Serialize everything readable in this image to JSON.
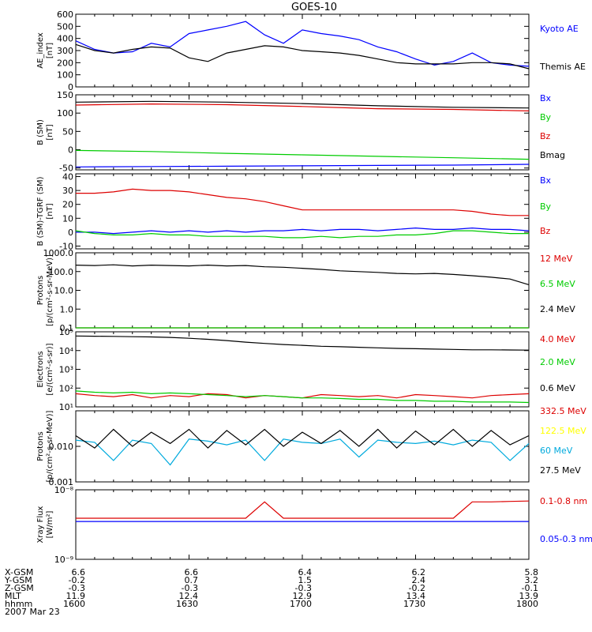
{
  "title": "GOES-10",
  "colors": {
    "axis": "#000000",
    "black": "#000000",
    "blue": "#0000ff",
    "red": "#dd0000",
    "green": "#00cc00",
    "yellow": "#ffff00",
    "cyan": "#00aadd"
  },
  "chart_data": [
    {
      "type": "line",
      "id": "ae",
      "ylabel": [
        "AE_index",
        "[nT]"
      ],
      "ylim": [
        0,
        600
      ],
      "yticks": [
        {
          "v": 0,
          "label": "0"
        },
        {
          "v": 100,
          "label": "100"
        },
        {
          "v": 200,
          "label": "200"
        },
        {
          "v": 300,
          "label": "300"
        },
        {
          "v": 400,
          "label": "400"
        },
        {
          "v": 500,
          "label": "500"
        },
        {
          "v": 600,
          "label": "600"
        }
      ],
      "x": [
        0,
        5,
        10,
        15,
        20,
        25,
        30,
        35,
        40,
        45,
        50,
        55,
        60,
        65,
        70,
        75,
        80,
        85,
        90,
        95,
        100,
        105,
        110,
        115,
        120
      ],
      "series": [
        {
          "name": "Kyoto AE",
          "color": "blue",
          "values": [
            380,
            310,
            280,
            290,
            360,
            330,
            440,
            470,
            500,
            540,
            430,
            360,
            470,
            440,
            420,
            390,
            330,
            290,
            230,
            180,
            210,
            280,
            200,
            180,
            170
          ]
        },
        {
          "name": "Themis AE",
          "color": "black",
          "values": [
            350,
            300,
            280,
            310,
            330,
            320,
            240,
            210,
            280,
            310,
            340,
            330,
            300,
            290,
            280,
            260,
            230,
            200,
            190,
            190,
            190,
            200,
            200,
            190,
            150
          ]
        }
      ]
    },
    {
      "type": "line",
      "id": "bsm",
      "ylabel": [
        "B (SM)",
        "[nT]"
      ],
      "ylim": [
        -55,
        150
      ],
      "yticks": [
        {
          "v": -50,
          "label": "-50"
        },
        {
          "v": 0,
          "label": "0"
        },
        {
          "v": 50,
          "label": "50"
        },
        {
          "v": 100,
          "label": "100"
        },
        {
          "v": 150,
          "label": "150"
        }
      ],
      "x": [
        0,
        20,
        40,
        60,
        80,
        100,
        120
      ],
      "series": [
        {
          "name": "Bx",
          "color": "blue",
          "values": [
            -47,
            -46,
            -45,
            -44,
            -43,
            -42,
            -40
          ]
        },
        {
          "name": "By",
          "color": "green",
          "values": [
            -2,
            -5,
            -10,
            -14,
            -18,
            -22,
            -26
          ]
        },
        {
          "name": "Bz",
          "color": "red",
          "values": [
            122,
            125,
            123,
            118,
            112,
            110,
            106
          ]
        },
        {
          "name": "Bmag",
          "color": "black",
          "values": [
            130,
            132,
            130,
            126,
            120,
            116,
            114
          ]
        }
      ]
    },
    {
      "type": "line",
      "id": "btgrf",
      "ylabel": [
        "B (SM)-TGRF (SM)",
        "[nT]"
      ],
      "ylim": [
        -12,
        42
      ],
      "yticks": [
        {
          "v": -10,
          "label": "-10"
        },
        {
          "v": 0,
          "label": "0"
        },
        {
          "v": 10,
          "label": "10"
        },
        {
          "v": 20,
          "label": "20"
        },
        {
          "v": 30,
          "label": "30"
        },
        {
          "v": 40,
          "label": "40"
        }
      ],
      "x": [
        0,
        5,
        10,
        15,
        20,
        25,
        30,
        35,
        40,
        45,
        50,
        55,
        60,
        65,
        70,
        75,
        80,
        85,
        90,
        95,
        100,
        105,
        110,
        115,
        120
      ],
      "series": [
        {
          "name": "Bx",
          "color": "blue",
          "values": [
            0,
            0,
            -1,
            0,
            1,
            0,
            1,
            0,
            1,
            0,
            1,
            1,
            2,
            1,
            2,
            2,
            1,
            2,
            3,
            2,
            2,
            3,
            2,
            2,
            1
          ]
        },
        {
          "name": "By",
          "color": "green",
          "values": [
            1,
            -1,
            -2,
            -2,
            -1,
            -2,
            -2,
            -3,
            -3,
            -3,
            -3,
            -4,
            -4,
            -3,
            -4,
            -3,
            -3,
            -2,
            -2,
            -1,
            1,
            1,
            0,
            -1,
            -1
          ]
        },
        {
          "name": "Bz",
          "color": "red",
          "values": [
            28,
            28,
            29,
            31,
            30,
            30,
            29,
            27,
            25,
            24,
            22,
            19,
            16,
            16,
            16,
            16,
            16,
            16,
            16,
            16,
            16,
            15,
            13,
            12,
            12
          ]
        }
      ]
    },
    {
      "type": "line",
      "id": "protons_low",
      "ylabel": [
        "Protons",
        "[p/(cm²-s-sr-MeV)]"
      ],
      "log": true,
      "ylim": [
        0.1,
        1000
      ],
      "yticks": [
        {
          "v": 0.1,
          "label": "0.1"
        },
        {
          "v": 1,
          "label": "1.0"
        },
        {
          "v": 10,
          "label": "10.0"
        },
        {
          "v": 100,
          "label": "100.0"
        },
        {
          "v": 1000,
          "label": "1000.0"
        }
      ],
      "x": [
        0,
        5,
        10,
        15,
        20,
        25,
        30,
        35,
        40,
        45,
        50,
        55,
        60,
        65,
        70,
        75,
        80,
        85,
        90,
        95,
        100,
        105,
        110,
        115,
        120
      ],
      "series": [
        {
          "name": "12 MeV",
          "color": "red",
          "values": [
            0.1,
            0.1,
            0.1,
            0.1,
            0.1,
            0.1,
            0.1,
            0.1,
            0.1,
            0.1,
            0.1,
            0.1,
            0.1,
            0.1,
            0.1,
            0.1,
            0.1,
            0.1,
            0.1,
            0.1,
            0.1,
            0.1,
            0.1,
            0.1,
            0.1
          ]
        },
        {
          "name": "6.5 MeV",
          "color": "green",
          "values": [
            0.1,
            0.1,
            0.1,
            0.1,
            0.1,
            0.1,
            0.1,
            0.1,
            0.1,
            0.1,
            0.1,
            0.1,
            0.1,
            0.1,
            0.1,
            0.1,
            0.1,
            0.1,
            0.1,
            0.1,
            0.1,
            0.1,
            0.1,
            0.1,
            0.1
          ]
        },
        {
          "name": "2.4 MeV",
          "color": "black",
          "values": [
            220,
            210,
            230,
            200,
            220,
            210,
            200,
            220,
            200,
            210,
            180,
            170,
            150,
            130,
            110,
            100,
            90,
            80,
            75,
            80,
            70,
            60,
            50,
            40,
            20
          ]
        }
      ]
    },
    {
      "type": "line",
      "id": "electrons",
      "ylabel": [
        "Electrons",
        "[e/(cm²-s-sr)]"
      ],
      "log": true,
      "ylim": [
        10,
        100000
      ],
      "yticks": [
        {
          "v": 10,
          "label": "10¹"
        },
        {
          "v": 100,
          "label": "10²"
        },
        {
          "v": 1000,
          "label": "10³"
        },
        {
          "v": 10000,
          "label": "10⁴"
        },
        {
          "v": 100000,
          "label": "10⁵"
        }
      ],
      "x": [
        0,
        5,
        10,
        15,
        20,
        25,
        30,
        35,
        40,
        45,
        50,
        55,
        60,
        65,
        70,
        75,
        80,
        85,
        90,
        95,
        100,
        105,
        110,
        115,
        120
      ],
      "series": [
        {
          "name": "4.0 MeV",
          "color": "red",
          "values": [
            50,
            40,
            35,
            45,
            30,
            40,
            35,
            50,
            45,
            30,
            40,
            35,
            30,
            45,
            40,
            35,
            40,
            30,
            45,
            40,
            35,
            30,
            40,
            45,
            50
          ]
        },
        {
          "name": "2.0 MeV",
          "color": "green",
          "values": [
            70,
            60,
            55,
            60,
            50,
            55,
            50,
            45,
            40,
            35,
            40,
            35,
            30,
            30,
            28,
            25,
            25,
            22,
            22,
            20,
            20,
            18,
            18,
            18,
            17
          ]
        },
        {
          "name": "0.6 MeV",
          "color": "black",
          "values": [
            60000,
            58000,
            57000,
            55000,
            53000,
            50000,
            45000,
            40000,
            34000,
            28000,
            24000,
            21000,
            19000,
            17000,
            16000,
            15000,
            14000,
            13000,
            12500,
            12000,
            11500,
            11000,
            11000,
            10800,
            10500
          ]
        }
      ]
    },
    {
      "type": "line",
      "id": "protons_high",
      "ylabel": [
        "Protons",
        "[p/(cm²-s-sr-MeV)]"
      ],
      "log": true,
      "ylim": [
        0.001,
        0.1
      ],
      "yticks": [
        {
          "v": 0.001,
          "label": "0.001"
        },
        {
          "v": 0.01,
          "label": "0.010"
        }
      ],
      "x": [
        0,
        5,
        10,
        15,
        20,
        25,
        30,
        35,
        40,
        45,
        50,
        55,
        60,
        65,
        70,
        75,
        80,
        85,
        90,
        95,
        100,
        105,
        110,
        115,
        120
      ],
      "series": [
        {
          "name": "332.5 MeV",
          "color": "red",
          "values": [
            null,
            null,
            null,
            null,
            null,
            null,
            null,
            null,
            null,
            null,
            null,
            null,
            null,
            null,
            null,
            null,
            null,
            null,
            null,
            null,
            null,
            null,
            null,
            null,
            null
          ]
        },
        {
          "name": "122.5 MeV",
          "color": "yellow",
          "values": [
            null,
            null,
            null,
            null,
            null,
            null,
            null,
            null,
            null,
            null,
            null,
            null,
            null,
            null,
            null,
            null,
            null,
            null,
            null,
            null,
            null,
            null,
            null,
            null,
            null
          ]
        },
        {
          "name": "60 MeV",
          "color": "cyan",
          "values": [
            0.015,
            0.013,
            0.004,
            0.015,
            0.012,
            0.003,
            0.016,
            0.014,
            0.011,
            0.015,
            0.004,
            0.016,
            0.013,
            0.012,
            0.016,
            0.005,
            0.015,
            0.013,
            0.012,
            0.014,
            0.011,
            0.015,
            0.013,
            0.004,
            0.012
          ]
        },
        {
          "name": "27.5 MeV",
          "color": "black",
          "values": [
            0.02,
            0.009,
            0.03,
            0.01,
            0.025,
            0.012,
            0.03,
            0.009,
            0.028,
            0.011,
            0.03,
            0.01,
            0.025,
            0.012,
            0.028,
            0.01,
            0.03,
            0.009,
            0.027,
            0.011,
            0.03,
            0.01,
            0.028,
            0.011,
            0.02
          ]
        }
      ]
    },
    {
      "type": "line",
      "id": "xray",
      "ylabel": [
        "Xray  Flux",
        "[W/m²]"
      ],
      "log": true,
      "ylim": [
        1e-09,
        1e-08
      ],
      "yticks": [
        {
          "v": 1e-09,
          "label": "10⁻⁹"
        },
        {
          "v": 1e-08,
          "label": "10⁻⁸"
        }
      ],
      "x": [
        0,
        5,
        10,
        15,
        20,
        25,
        30,
        35,
        40,
        45,
        50,
        55,
        60,
        65,
        70,
        75,
        80,
        85,
        90,
        95,
        100,
        105,
        110,
        115,
        120
      ],
      "series": [
        {
          "name": "0.1-0.8 nm",
          "color": "red",
          "values": [
            3.9e-09,
            3.9e-09,
            3.9e-09,
            3.9e-09,
            3.9e-09,
            3.9e-09,
            3.9e-09,
            3.9e-09,
            3.9e-09,
            3.9e-09,
            6.7e-09,
            3.9e-09,
            3.9e-09,
            3.9e-09,
            3.9e-09,
            3.9e-09,
            3.9e-09,
            3.9e-09,
            3.9e-09,
            3.9e-09,
            3.9e-09,
            6.7e-09,
            6.7e-09,
            6.8e-09,
            6.9e-09
          ]
        },
        {
          "name": "0.05-0.3 nm",
          "color": "blue",
          "values": [
            3.5e-09,
            3.5e-09,
            3.5e-09,
            3.5e-09,
            3.5e-09,
            3.5e-09,
            3.5e-09,
            3.5e-09,
            3.5e-09,
            3.5e-09,
            3.5e-09,
            3.5e-09,
            3.5e-09,
            3.5e-09,
            3.5e-09,
            3.5e-09,
            3.5e-09,
            3.5e-09,
            3.5e-09,
            3.5e-09,
            3.5e-09,
            3.5e-09,
            3.5e-09,
            3.5e-09,
            3.5e-09
          ]
        }
      ]
    }
  ],
  "orbit_table": {
    "labels": [
      "X-GSM",
      "Y-GSM",
      "Z-GSM",
      "MLT",
      "hhmm"
    ],
    "columns": [
      [
        "6.6",
        "-0.2",
        "-0.3",
        "11.9",
        "1600"
      ],
      [
        "6.6",
        "0.7",
        "-0.3",
        "12.4",
        "1630"
      ],
      [
        "6.4",
        "1.5",
        "-0.3",
        "12.9",
        "1700"
      ],
      [
        "6.2",
        "2.4",
        "-0.2",
        "13.4",
        "1730"
      ],
      [
        "5.8",
        "3.2",
        "-0.1",
        "13.9",
        "1800"
      ]
    ],
    "date": "2007 Mar 23"
  }
}
